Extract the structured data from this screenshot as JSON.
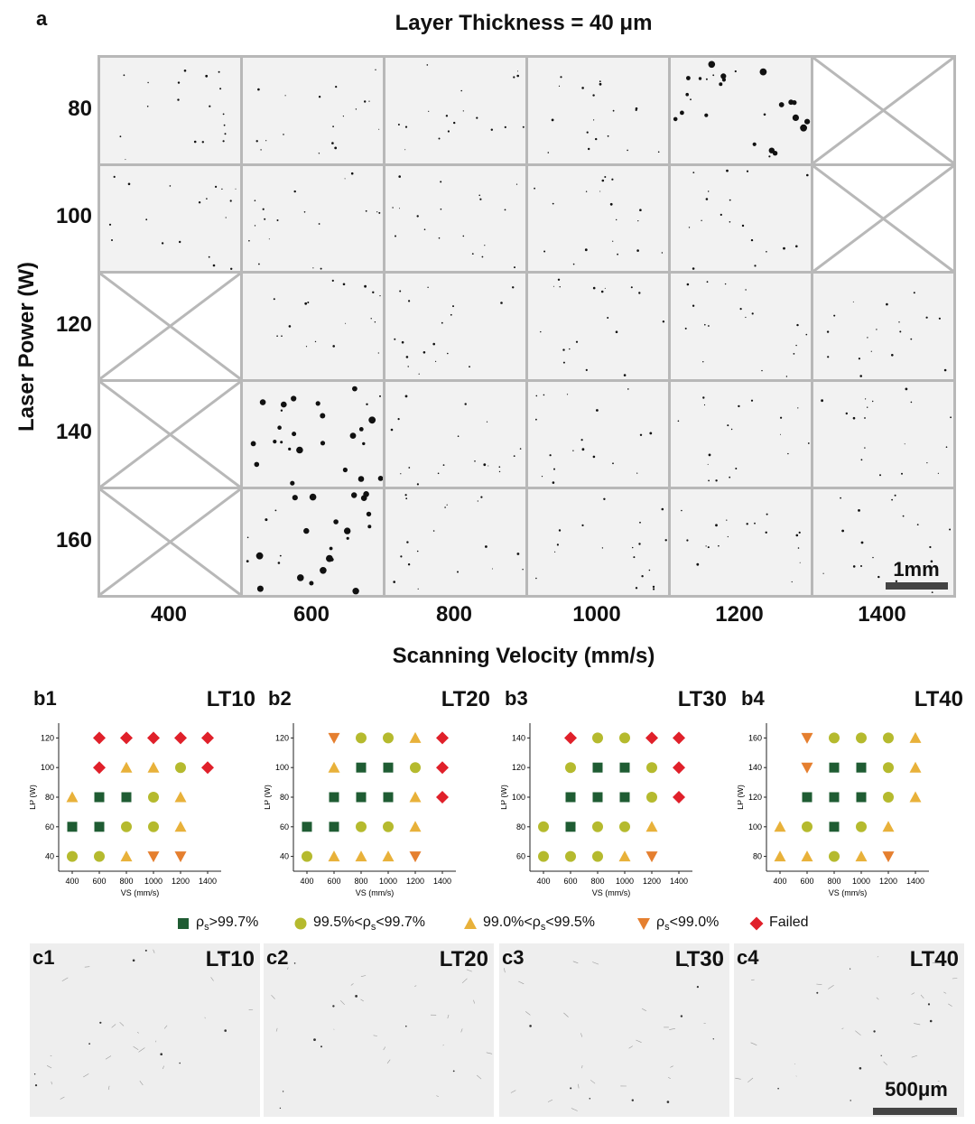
{
  "panel_a": {
    "letter": "a",
    "title": "Layer Thickness = 40 μm",
    "ylabel": "Laser Power (W)",
    "xlabel": "Scanning Velocity (mm/s)",
    "x_ticks": [
      "400",
      "600",
      "800",
      "1000",
      "1200",
      "1400"
    ],
    "y_ticks": [
      "80",
      "100",
      "120",
      "140",
      "160"
    ],
    "scale_label": "1mm",
    "failed_cells": [
      [
        "80",
        "1400"
      ],
      [
        "100",
        "1400"
      ],
      [
        "120",
        "400"
      ],
      [
        "140",
        "400"
      ],
      [
        "160",
        "400"
      ]
    ],
    "porous_cells": [
      [
        "80",
        "1200"
      ],
      [
        "140",
        "600"
      ],
      [
        "160",
        "600"
      ]
    ]
  },
  "legend": {
    "items": [
      {
        "shape": "square",
        "color": "#1f5c33",
        "pre": "ρ",
        "sub": "s",
        "post": ">99.7%"
      },
      {
        "shape": "circle",
        "color": "#b5ba2e",
        "pre": "99.5%<ρ",
        "sub": "s",
        "post": "<99.7%"
      },
      {
        "shape": "triangle",
        "color": "#e8b13a",
        "pre": "99.0%<ρ",
        "sub": "s",
        "post": "<99.5%"
      },
      {
        "shape": "triangle-down",
        "color": "#e57f2f",
        "pre": "ρ",
        "sub": "s",
        "post": "<99.0%"
      },
      {
        "shape": "diamond",
        "color": "#e0202a",
        "pre": "",
        "sub": "",
        "post": "Failed"
      }
    ]
  },
  "chart_data": [
    {
      "type": "scatter",
      "panel": "b1",
      "label": "LT10",
      "xlabel": "VS (mm/s)",
      "ylabel": "LP (W)",
      "x_ticks": [
        400,
        600,
        800,
        1000,
        1200,
        1400
      ],
      "y_ticks": [
        40,
        60,
        80,
        100,
        120
      ],
      "points": [
        [
          600,
          120,
          "diamond"
        ],
        [
          800,
          120,
          "diamond"
        ],
        [
          1000,
          120,
          "diamond"
        ],
        [
          1200,
          120,
          "diamond"
        ],
        [
          1400,
          120,
          "diamond"
        ],
        [
          600,
          100,
          "diamond"
        ],
        [
          800,
          100,
          "triangle"
        ],
        [
          1000,
          100,
          "triangle"
        ],
        [
          1200,
          100,
          "circle"
        ],
        [
          1400,
          100,
          "diamond"
        ],
        [
          400,
          80,
          "triangle"
        ],
        [
          600,
          80,
          "square"
        ],
        [
          800,
          80,
          "square"
        ],
        [
          1000,
          80,
          "circle"
        ],
        [
          1200,
          80,
          "triangle"
        ],
        [
          400,
          60,
          "square"
        ],
        [
          600,
          60,
          "square"
        ],
        [
          800,
          60,
          "circle"
        ],
        [
          1000,
          60,
          "circle"
        ],
        [
          1200,
          60,
          "triangle"
        ],
        [
          400,
          40,
          "circle"
        ],
        [
          600,
          40,
          "circle"
        ],
        [
          800,
          40,
          "triangle"
        ],
        [
          1000,
          40,
          "triangle-down"
        ],
        [
          1200,
          40,
          "triangle-down"
        ]
      ]
    },
    {
      "type": "scatter",
      "panel": "b2",
      "label": "LT20",
      "xlabel": "VS (mm/s)",
      "ylabel": "LP (W)",
      "x_ticks": [
        400,
        600,
        800,
        1000,
        1200,
        1400
      ],
      "y_ticks": [
        40,
        60,
        80,
        100,
        120
      ],
      "points": [
        [
          600,
          120,
          "triangle-down"
        ],
        [
          800,
          120,
          "circle"
        ],
        [
          1000,
          120,
          "circle"
        ],
        [
          1200,
          120,
          "triangle"
        ],
        [
          1400,
          120,
          "diamond"
        ],
        [
          600,
          100,
          "triangle"
        ],
        [
          800,
          100,
          "square"
        ],
        [
          1000,
          100,
          "square"
        ],
        [
          1200,
          100,
          "circle"
        ],
        [
          1400,
          100,
          "diamond"
        ],
        [
          600,
          80,
          "square"
        ],
        [
          800,
          80,
          "square"
        ],
        [
          1000,
          80,
          "square"
        ],
        [
          1200,
          80,
          "triangle"
        ],
        [
          1400,
          80,
          "diamond"
        ],
        [
          400,
          60,
          "square"
        ],
        [
          600,
          60,
          "square"
        ],
        [
          800,
          60,
          "circle"
        ],
        [
          1000,
          60,
          "circle"
        ],
        [
          1200,
          60,
          "triangle"
        ],
        [
          400,
          40,
          "circle"
        ],
        [
          600,
          40,
          "triangle"
        ],
        [
          800,
          40,
          "triangle"
        ],
        [
          1000,
          40,
          "triangle"
        ],
        [
          1200,
          40,
          "triangle-down"
        ]
      ]
    },
    {
      "type": "scatter",
      "panel": "b3",
      "label": "LT30",
      "xlabel": "VS (mm/s)",
      "ylabel": "LP (W)",
      "x_ticks": [
        400,
        600,
        800,
        1000,
        1200,
        1400
      ],
      "y_ticks": [
        60,
        80,
        100,
        120,
        140
      ],
      "points": [
        [
          600,
          140,
          "diamond"
        ],
        [
          800,
          140,
          "circle"
        ],
        [
          1000,
          140,
          "circle"
        ],
        [
          1200,
          140,
          "diamond"
        ],
        [
          1400,
          140,
          "diamond"
        ],
        [
          600,
          120,
          "circle"
        ],
        [
          800,
          120,
          "square"
        ],
        [
          1000,
          120,
          "square"
        ],
        [
          1200,
          120,
          "circle"
        ],
        [
          1400,
          120,
          "diamond"
        ],
        [
          600,
          100,
          "square"
        ],
        [
          800,
          100,
          "square"
        ],
        [
          1000,
          100,
          "square"
        ],
        [
          1200,
          100,
          "circle"
        ],
        [
          1400,
          100,
          "diamond"
        ],
        [
          400,
          80,
          "circle"
        ],
        [
          600,
          80,
          "square"
        ],
        [
          800,
          80,
          "circle"
        ],
        [
          1000,
          80,
          "circle"
        ],
        [
          1200,
          80,
          "triangle"
        ],
        [
          400,
          60,
          "circle"
        ],
        [
          600,
          60,
          "circle"
        ],
        [
          800,
          60,
          "circle"
        ],
        [
          1000,
          60,
          "triangle"
        ],
        [
          1200,
          60,
          "triangle-down"
        ]
      ]
    },
    {
      "type": "scatter",
      "panel": "b4",
      "label": "LT40",
      "xlabel": "VS (mm/s)",
      "ylabel": "LP (W)",
      "x_ticks": [
        400,
        600,
        800,
        1000,
        1200,
        1400
      ],
      "y_ticks": [
        80,
        100,
        120,
        140,
        160
      ],
      "points": [
        [
          600,
          160,
          "triangle-down"
        ],
        [
          800,
          160,
          "circle"
        ],
        [
          1000,
          160,
          "circle"
        ],
        [
          1200,
          160,
          "circle"
        ],
        [
          1400,
          160,
          "triangle"
        ],
        [
          600,
          140,
          "triangle-down"
        ],
        [
          800,
          140,
          "square"
        ],
        [
          1000,
          140,
          "square"
        ],
        [
          1200,
          140,
          "circle"
        ],
        [
          1400,
          140,
          "triangle"
        ],
        [
          600,
          120,
          "square"
        ],
        [
          800,
          120,
          "square"
        ],
        [
          1000,
          120,
          "square"
        ],
        [
          1200,
          120,
          "circle"
        ],
        [
          1400,
          120,
          "triangle"
        ],
        [
          400,
          100,
          "triangle"
        ],
        [
          600,
          100,
          "circle"
        ],
        [
          800,
          100,
          "square"
        ],
        [
          1000,
          100,
          "circle"
        ],
        [
          1200,
          100,
          "triangle"
        ],
        [
          400,
          80,
          "triangle"
        ],
        [
          600,
          80,
          "triangle"
        ],
        [
          800,
          80,
          "circle"
        ],
        [
          1000,
          80,
          "triangle"
        ],
        [
          1200,
          80,
          "triangle-down"
        ]
      ]
    }
  ],
  "panels_c": [
    {
      "letter": "c1",
      "label": "LT10"
    },
    {
      "letter": "c2",
      "label": "LT20"
    },
    {
      "letter": "c3",
      "label": "LT30"
    },
    {
      "letter": "c4",
      "label": "LT40"
    }
  ],
  "c_scale_label": "500μm",
  "colors": {
    "square": "#1f5c33",
    "circle": "#b5ba2e",
    "triangle": "#e8b13a",
    "triangle-down": "#e57f2f",
    "diamond": "#e0202a"
  }
}
